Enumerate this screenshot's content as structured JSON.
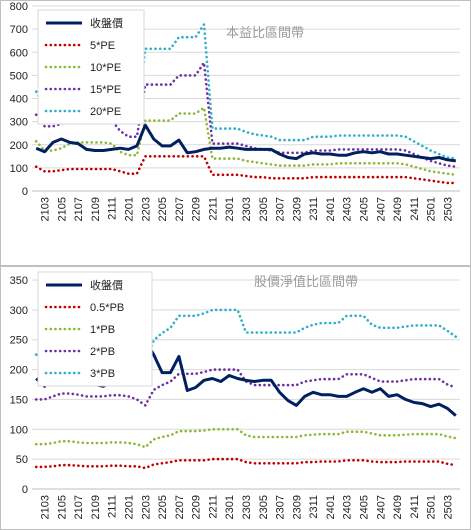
{
  "chart_data": [
    {
      "type": "line",
      "title": "本益比區間帶",
      "categories": [
        "2102",
        "2103",
        "2104",
        "2105",
        "2106",
        "2107",
        "2108",
        "2109",
        "2110",
        "2111",
        "2112",
        "2201",
        "2202",
        "2203",
        "2204",
        "2205",
        "2206",
        "2207",
        "2208",
        "2209",
        "2210",
        "2211",
        "2212",
        "2301",
        "2302",
        "2303",
        "2304",
        "2305",
        "2306",
        "2307",
        "2308",
        "2309",
        "2310",
        "2311",
        "2312",
        "2401",
        "2402",
        "2403",
        "2404",
        "2405",
        "2406",
        "2407",
        "2408",
        "2409",
        "2410",
        "2411",
        "2412",
        "2501",
        "2502",
        "2503",
        "2504"
      ],
      "x_tick_labels": [
        "2103",
        "2105",
        "2107",
        "2109",
        "2111",
        "2201",
        "2203",
        "2205",
        "2207",
        "2209",
        "2211",
        "2301",
        "2303",
        "2305",
        "2307",
        "2309",
        "2311",
        "2401",
        "2403",
        "2405",
        "2407",
        "2409",
        "2411",
        "2501",
        "2503"
      ],
      "ylim": [
        0,
        800
      ],
      "yticks": [
        0,
        100,
        200,
        300,
        400,
        500,
        600,
        700,
        800
      ],
      "legend_position": "top-left",
      "grid": true,
      "series": [
        {
          "name": "收盤價",
          "color": "#002060",
          "style": "solid",
          "values": [
            185,
            170,
            210,
            225,
            210,
            205,
            180,
            175,
            175,
            180,
            185,
            180,
            195,
            285,
            225,
            195,
            195,
            220,
            165,
            170,
            180,
            185,
            185,
            190,
            185,
            180,
            180,
            180,
            180,
            160,
            145,
            140,
            160,
            165,
            160,
            160,
            155,
            155,
            165,
            170,
            165,
            170,
            160,
            160,
            155,
            150,
            145,
            140,
            145,
            135,
            130
          ]
        },
        {
          "name": "5*PE",
          "color": "#c00000",
          "style": "dotted",
          "values": [
            105,
            85,
            85,
            90,
            95,
            95,
            95,
            95,
            95,
            95,
            85,
            75,
            75,
            150,
            150,
            150,
            150,
            150,
            150,
            150,
            150,
            70,
            70,
            70,
            70,
            65,
            60,
            60,
            55,
            55,
            55,
            55,
            55,
            60,
            60,
            60,
            60,
            60,
            60,
            60,
            60,
            60,
            60,
            60,
            60,
            55,
            50,
            45,
            40,
            35,
            35
          ]
        },
        {
          "name": "10*PE",
          "color": "#8db83a",
          "style": "dotted",
          "values": [
            215,
            175,
            175,
            185,
            205,
            210,
            210,
            210,
            210,
            205,
            170,
            155,
            155,
            305,
            305,
            305,
            305,
            335,
            335,
            335,
            360,
            140,
            140,
            140,
            140,
            130,
            125,
            120,
            115,
            110,
            110,
            110,
            110,
            115,
            115,
            115,
            120,
            120,
            120,
            120,
            120,
            120,
            120,
            120,
            115,
            105,
            95,
            85,
            80,
            75,
            70
          ]
        },
        {
          "name": "15*PE",
          "color": "#7030a0",
          "style": "dotted",
          "values": [
            330,
            280,
            280,
            290,
            305,
            310,
            310,
            310,
            310,
            305,
            260,
            235,
            235,
            460,
            460,
            460,
            460,
            500,
            500,
            500,
            555,
            205,
            205,
            205,
            205,
            195,
            185,
            180,
            175,
            165,
            165,
            165,
            165,
            175,
            175,
            175,
            180,
            180,
            180,
            180,
            180,
            180,
            180,
            180,
            175,
            160,
            145,
            130,
            120,
            110,
            105
          ]
        },
        {
          "name": "20*PE",
          "color": "#31aec9",
          "style": "dotted",
          "values": [
            430,
            360,
            360,
            385,
            410,
            415,
            415,
            415,
            415,
            405,
            345,
            310,
            310,
            615,
            615,
            615,
            615,
            665,
            665,
            665,
            720,
            270,
            270,
            270,
            270,
            255,
            245,
            240,
            235,
            220,
            220,
            220,
            220,
            235,
            235,
            235,
            240,
            240,
            240,
            240,
            240,
            240,
            240,
            240,
            235,
            215,
            195,
            175,
            160,
            145,
            140
          ]
        }
      ]
    },
    {
      "type": "line",
      "title": "股價淨值比區間帶",
      "categories": [
        "2102",
        "2103",
        "2104",
        "2105",
        "2106",
        "2107",
        "2108",
        "2109",
        "2110",
        "2111",
        "2112",
        "2201",
        "2202",
        "2203",
        "2204",
        "2205",
        "2206",
        "2207",
        "2208",
        "2209",
        "2210",
        "2211",
        "2212",
        "2301",
        "2302",
        "2303",
        "2304",
        "2305",
        "2306",
        "2307",
        "2308",
        "2309",
        "2310",
        "2311",
        "2312",
        "2401",
        "2402",
        "2403",
        "2404",
        "2405",
        "2406",
        "2407",
        "2408",
        "2409",
        "2410",
        "2411",
        "2412",
        "2501",
        "2502",
        "2503",
        "2504"
      ],
      "x_tick_labels": [
        "2103",
        "2105",
        "2107",
        "2109",
        "2111",
        "2201",
        "2203",
        "2205",
        "2207",
        "2209",
        "2211",
        "2301",
        "2303",
        "2305",
        "2307",
        "2309",
        "2311",
        "2401",
        "2403",
        "2405",
        "2407",
        "2409",
        "2411",
        "2501",
        "2503"
      ],
      "ylim": [
        0,
        350
      ],
      "yticks": [
        0,
        50,
        100,
        150,
        200,
        250,
        300,
        350
      ],
      "legend_position": "top-left",
      "grid": true,
      "series": [
        {
          "name": "收盤價",
          "color": "#002060",
          "style": "solid",
          "values": [
            185,
            172,
            205,
            225,
            210,
            205,
            178,
            175,
            172,
            180,
            185,
            178,
            195,
            248,
            225,
            195,
            195,
            222,
            165,
            170,
            182,
            185,
            180,
            190,
            185,
            182,
            180,
            182,
            182,
            162,
            148,
            140,
            155,
            162,
            158,
            158,
            155,
            155,
            162,
            168,
            162,
            168,
            155,
            158,
            150,
            145,
            143,
            138,
            142,
            135,
            123
          ]
        },
        {
          "name": "0.5*PB",
          "color": "#c00000",
          "style": "dotted",
          "values": [
            37,
            37,
            38,
            40,
            40,
            39,
            38,
            38,
            38,
            39,
            39,
            38,
            38,
            35,
            41,
            43,
            45,
            48,
            48,
            48,
            48,
            50,
            50,
            50,
            50,
            45,
            43,
            43,
            43,
            43,
            43,
            43,
            45,
            45,
            46,
            46,
            46,
            48,
            48,
            48,
            46,
            45,
            45,
            45,
            46,
            46,
            46,
            46,
            46,
            42,
            40
          ]
        },
        {
          "name": "1*PB",
          "color": "#8db83a",
          "style": "dotted",
          "values": [
            75,
            75,
            77,
            80,
            80,
            78,
            77,
            77,
            77,
            78,
            78,
            77,
            75,
            70,
            83,
            87,
            90,
            97,
            97,
            97,
            98,
            100,
            100,
            100,
            100,
            90,
            87,
            87,
            87,
            87,
            87,
            87,
            90,
            91,
            92,
            92,
            92,
            96,
            96,
            96,
            93,
            90,
            90,
            90,
            91,
            92,
            92,
            92,
            92,
            88,
            85
          ]
        },
        {
          "name": "2*PB",
          "color": "#7030a0",
          "style": "dotted",
          "values": [
            150,
            150,
            155,
            160,
            160,
            158,
            155,
            155,
            155,
            157,
            157,
            155,
            150,
            140,
            166,
            174,
            180,
            193,
            193,
            193,
            196,
            200,
            200,
            200,
            200,
            180,
            174,
            174,
            174,
            174,
            174,
            174,
            180,
            182,
            184,
            184,
            184,
            192,
            192,
            192,
            186,
            180,
            180,
            180,
            182,
            184,
            184,
            184,
            184,
            175,
            170
          ]
        },
        {
          "name": "3*PB",
          "color": "#31aec9",
          "style": "dotted",
          "values": [
            225,
            225,
            232,
            240,
            240,
            237,
            232,
            232,
            232,
            236,
            236,
            232,
            225,
            210,
            249,
            261,
            270,
            290,
            290,
            290,
            294,
            300,
            300,
            300,
            300,
            262,
            262,
            262,
            262,
            262,
            262,
            262,
            270,
            275,
            278,
            278,
            278,
            290,
            290,
            290,
            275,
            270,
            270,
            270,
            272,
            274,
            274,
            274,
            274,
            265,
            255
          ]
        }
      ]
    }
  ]
}
